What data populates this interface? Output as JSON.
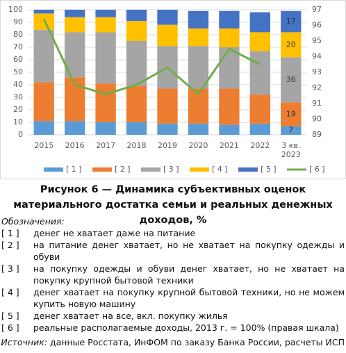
{
  "chart_data": {
    "type": "bar",
    "categories": [
      "2015",
      "2016",
      "2017",
      "2018",
      "2019",
      "2020",
      "2021",
      "2022",
      "3 кв. 2023"
    ],
    "series": [
      {
        "name": "[ 1 ]",
        "color": "#5b9bd5",
        "values": [
          11,
          11,
          10,
          10,
          9,
          9,
          8,
          9,
          7
        ]
      },
      {
        "name": "[ 2 ]",
        "color": "#ed7d31",
        "values": [
          31,
          35,
          31,
          29,
          28,
          28,
          29,
          23,
          19
        ]
      },
      {
        "name": "[ 3 ]",
        "color": "#a5a5a5",
        "values": [
          42,
          36,
          41,
          36,
          34,
          34,
          33,
          35,
          36
        ]
      },
      {
        "name": "[ 4 ]",
        "color": "#ffc000",
        "values": [
          13,
          12,
          12,
          16,
          17,
          14,
          15,
          15,
          20
        ]
      },
      {
        "name": "[ 5 ]",
        "color": "#4472c4",
        "values": [
          3,
          6,
          6,
          9,
          12,
          14,
          14,
          16,
          17
        ]
      },
      {
        "name": "[ 6 ]",
        "color": "#70ad47",
        "type": "line",
        "axis": "y2",
        "values": [
          96.4,
          92.2,
          91.6,
          92.2,
          93.3,
          91.6,
          94.5,
          93.5,
          null
        ]
      }
    ],
    "ylim": [
      0,
      100
    ],
    "yticks": [
      0,
      10,
      20,
      30,
      40,
      50,
      60,
      70,
      80,
      90,
      100
    ],
    "y2lim": [
      89,
      97
    ],
    "y2ticks": [
      89,
      90,
      91,
      92,
      93,
      94,
      95,
      96,
      97
    ],
    "grid": true,
    "data_labels": "last",
    "legend": "bottom"
  },
  "figure_caption": "Рисунок 6 — Динамика субъективных оценок материального достатка семьи и реальных денежных доходов, %",
  "notes": {
    "heading": "Обозначения:",
    "items": [
      {
        "code": "[ 1 ]",
        "text": "денег не хватает даже на питание"
      },
      {
        "code": "[ 2 ]",
        "text": "на питание денег хватает, но не хватает на покупку одежды и обуви"
      },
      {
        "code": "[ 3 ]",
        "text": "на покупку одежды и обуви денег хватает, но не хватает на покупку крупной бытовой техники"
      },
      {
        "code": "[ 4 ]",
        "text": "денег хватает на покупку крупной бытовой техники, но не можем купить новую машину"
      },
      {
        "code": "[ 5 ]",
        "text": "денег хватает на все, вкл. покупку жилья"
      },
      {
        "code": "[ 6 ]",
        "text": "реальные располагаемые доходы, 2013 г. = 100% (правая шкала)"
      }
    ]
  },
  "source": {
    "label": "Источник:",
    "text": "данные Росстата, ИнФОМ по заказу Банка России, расчеты ИСП"
  }
}
